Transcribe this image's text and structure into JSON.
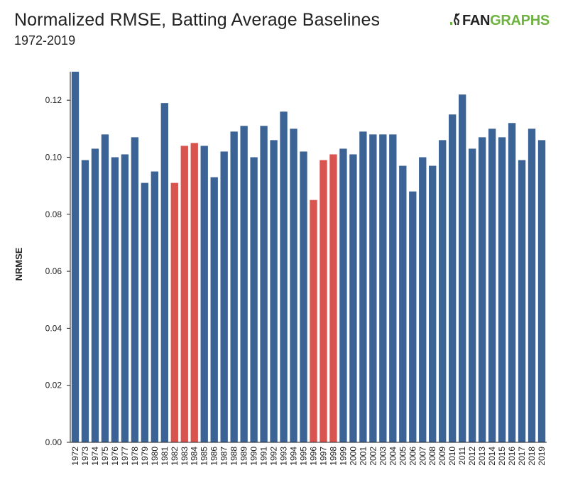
{
  "header": {
    "title": "Normalized RMSE, Batting Average Baselines",
    "subtitle": "1972-2019"
  },
  "logo": {
    "mark": ".",
    "text_dark": "FAN",
    "text_accent": "GRAPHS",
    "icon": "batter-silhouette-icon",
    "colors": {
      "dark": "#222222",
      "accent": "#6db33f"
    }
  },
  "colors": {
    "default_bar": "#3b6396",
    "highlight_bar": "#d9534f",
    "axis": "#222222"
  },
  "chart_data": {
    "type": "bar",
    "title": "Normalized RMSE, Batting Average Baselines",
    "subtitle": "1972-2019",
    "xlabel": "",
    "ylabel": "NRMSE",
    "ylim": [
      0,
      0.13
    ],
    "yticks": [
      0.0,
      0.02,
      0.04,
      0.06,
      0.08,
      0.1,
      0.12
    ],
    "ytick_labels": [
      "0.00",
      "0.02",
      "0.04",
      "0.06",
      "0.08",
      "0.10",
      "0.12"
    ],
    "grid": false,
    "categories": [
      "1972",
      "1973",
      "1974",
      "1975",
      "1976",
      "1977",
      "1978",
      "1979",
      "1980",
      "1981",
      "1982",
      "1983",
      "1984",
      "1985",
      "1986",
      "1987",
      "1988",
      "1989",
      "1990",
      "1991",
      "1992",
      "1993",
      "1994",
      "1995",
      "1996",
      "1997",
      "1998",
      "1999",
      "2000",
      "2001",
      "2002",
      "2003",
      "2004",
      "2005",
      "2006",
      "2007",
      "2008",
      "2009",
      "2010",
      "2011",
      "2012",
      "2013",
      "2014",
      "2015",
      "2016",
      "2017",
      "2018",
      "2019"
    ],
    "values": [
      0.13,
      0.099,
      0.103,
      0.108,
      0.1,
      0.101,
      0.107,
      0.091,
      0.095,
      0.119,
      0.091,
      0.104,
      0.105,
      0.104,
      0.093,
      0.102,
      0.109,
      0.111,
      0.1,
      0.111,
      0.106,
      0.116,
      0.11,
      0.102,
      0.085,
      0.099,
      0.101,
      0.103,
      0.101,
      0.109,
      0.108,
      0.108,
      0.108,
      0.097,
      0.088,
      0.1,
      0.097,
      0.106,
      0.115,
      0.122,
      0.103,
      0.107,
      0.11,
      0.107,
      0.112,
      0.099,
      0.11,
      0.106
    ],
    "highlighted": [
      "1982",
      "1983",
      "1984",
      "1996",
      "1997",
      "1998"
    ]
  }
}
